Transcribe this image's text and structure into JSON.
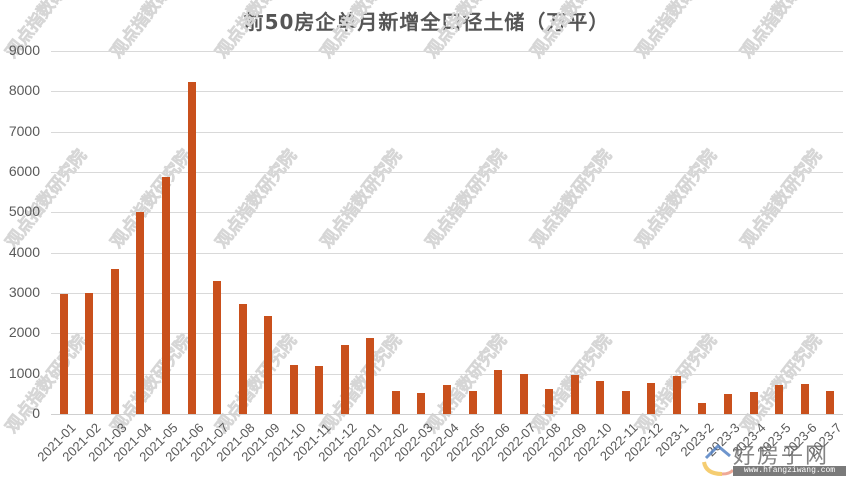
{
  "chart_data": {
    "type": "bar",
    "title": "前50房企单月新增全口径土储（万平）",
    "xlabel": "",
    "ylabel": "",
    "ylim": [
      0,
      9000
    ],
    "yticks": [
      0,
      1000,
      2000,
      3000,
      4000,
      5000,
      6000,
      7000,
      8000,
      9000
    ],
    "grid": true,
    "legend": null,
    "bar_color": "#C9501C",
    "categories": [
      "2021-01",
      "2021-02",
      "2021-03",
      "2021-04",
      "2021-05",
      "2021-06",
      "2021-07",
      "2021-08",
      "2021-09",
      "2021-10",
      "2021-11",
      "2021-12",
      "2022-01",
      "2022-02",
      "2022-03",
      "2022-04",
      "2022-05",
      "2022-06",
      "2022-07",
      "2022-08",
      "2022-09",
      "2022-10",
      "2022-11",
      "2022-12",
      "2023-1",
      "2023-2",
      "2023-3",
      "2023-4",
      "2023-5",
      "2023-6",
      "2023-7"
    ],
    "values": [
      2970,
      3000,
      3600,
      5000,
      5880,
      8240,
      3290,
      2720,
      2425,
      1210,
      1195,
      1715,
      1880,
      575,
      515,
      710,
      565,
      1080,
      1000,
      630,
      965,
      830,
      575,
      775,
      940,
      265,
      490,
      540,
      725,
      755,
      580
    ]
  },
  "watermark": {
    "text": "观点指数研究院",
    "logo_text": "好房子网",
    "logo_url": "www.hfangziwang.com"
  }
}
